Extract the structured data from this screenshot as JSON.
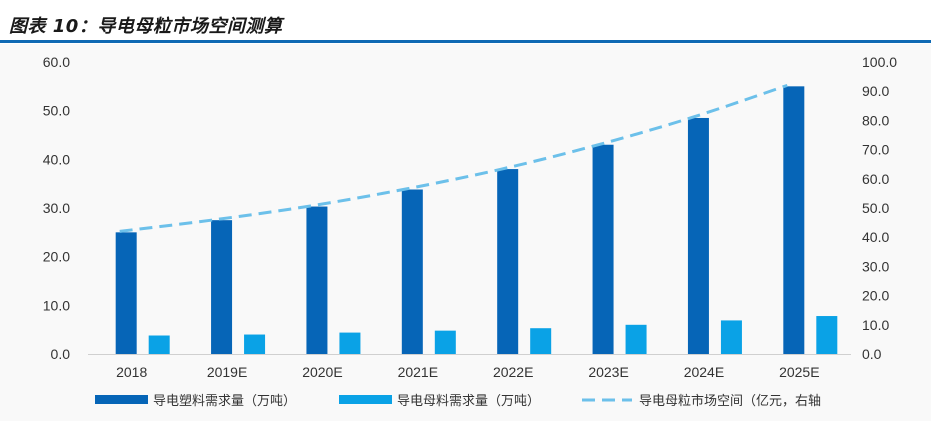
{
  "header": {
    "title": "图表 10：导电母粒市场空间测算"
  },
  "colors": {
    "accent_rule": "#0f6ab4",
    "series_dark_bar": "#0665b7",
    "series_light_bar": "#0aa2e6",
    "series_line": "#6cc0ea"
  },
  "chart_data": {
    "type": "bar",
    "categories": [
      "2018",
      "2019E",
      "2020E",
      "2021E",
      "2022E",
      "2023E",
      "2024E",
      "2025E"
    ],
    "series": [
      {
        "name": "导电塑料需求量（万吨）",
        "type": "bar",
        "axis": "left",
        "color": "#0665b7",
        "values": [
          25.0,
          27.5,
          30.3,
          33.8,
          38.0,
          43.0,
          48.5,
          55.0
        ]
      },
      {
        "name": "导电母料需求量（万吨）",
        "type": "bar",
        "axis": "left",
        "color": "#0aa2e6",
        "values": [
          3.8,
          4.0,
          4.4,
          4.8,
          5.3,
          6.0,
          6.9,
          7.8
        ]
      },
      {
        "name": "导电母粒市场空间（亿元，右轴",
        "type": "line",
        "style": "dashed",
        "axis": "right",
        "color": "#6cc0ea",
        "values": [
          42.0,
          46.0,
          50.7,
          56.5,
          63.3,
          71.5,
          81.0,
          92.0
        ]
      }
    ],
    "y_left": {
      "lim": [
        0,
        60
      ],
      "ticks": [
        "0.0",
        "10.0",
        "20.0",
        "30.0",
        "40.0",
        "50.0",
        "60.0"
      ]
    },
    "y_right": {
      "lim": [
        0,
        100
      ],
      "ticks": [
        "0.0",
        "10.0",
        "20.0",
        "30.0",
        "40.0",
        "50.0",
        "60.0",
        "70.0",
        "80.0",
        "90.0",
        "100.0"
      ]
    },
    "grid": false,
    "legend_position": "bottom"
  }
}
